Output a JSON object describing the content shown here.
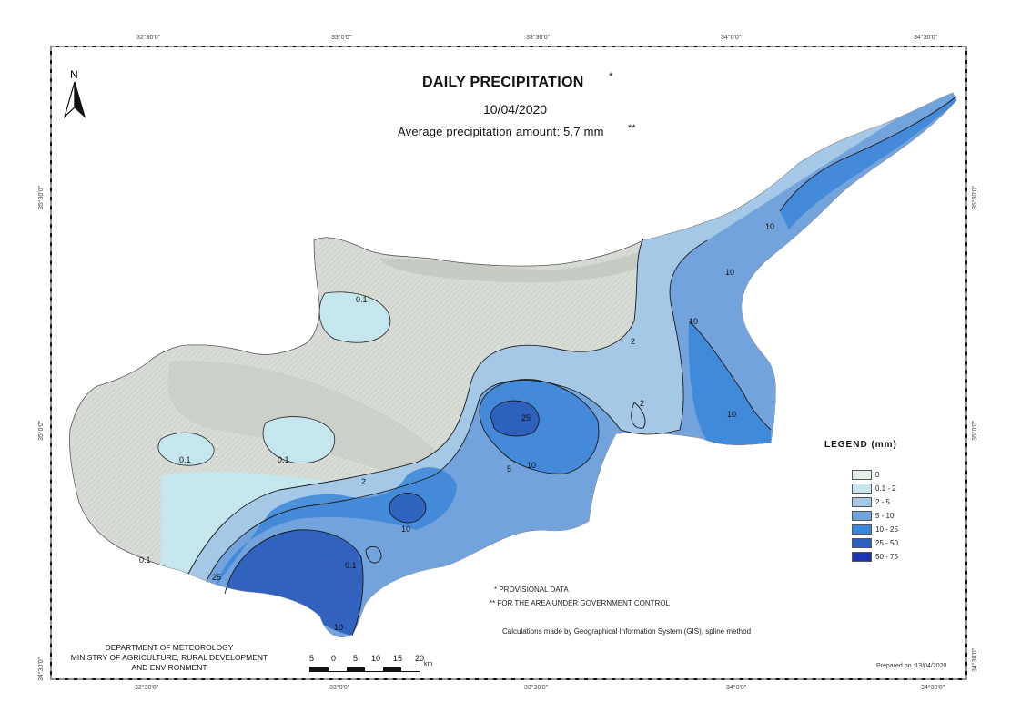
{
  "title": "DAILY PRECIPITATION",
  "title_marker": "*",
  "date": "10/04/2020",
  "average": "Average precipitation amount: 5.7 mm",
  "average_marker": "**",
  "north_label": "N",
  "graticule": {
    "top": [
      "32°30'0\"",
      "33°0'0\"",
      "33°30'0\"",
      "34°0'0\"",
      "34°30'0\""
    ],
    "bottom": [
      "32°30'0\"",
      "33°0'0\"",
      "33°30'0\"",
      "34°0'0\"",
      "34°30'0\""
    ],
    "left": [
      "35°30'0\"",
      "35°0'0\"",
      "34°30'0\""
    ],
    "right": [
      "35°30'0\"",
      "35°0'0\"",
      "34°30'0\""
    ]
  },
  "legend": {
    "title": "LEGEND (mm)",
    "items": [
      {
        "label": "0",
        "color": "#e6efe5"
      },
      {
        "label": "0.1 - 2",
        "color": "#c6e6ee"
      },
      {
        "label": "2 - 5",
        "color": "#a4c8e6"
      },
      {
        "label": "5 - 10",
        "color": "#73a3dc"
      },
      {
        "label": "10 - 25",
        "color": "#3c86d8"
      },
      {
        "label": "25 - 50",
        "color": "#2d5fbc"
      },
      {
        "label": "50 - 75",
        "color": "#1e32b4"
      }
    ]
  },
  "contour_labels": [
    "0.1",
    "2",
    "10",
    "25",
    "5"
  ],
  "notes": {
    "provisional": "* PROVISIONAL DATA",
    "government": "** FOR THE AREA UNDER GOVERNMENT CONTROL",
    "method": "Calculations made by Geographical Information System (GIS), spline method"
  },
  "department": {
    "line1": "DEPARTMENT OF METEOROLOGY",
    "line2": "MINISTRY OF AGRICULTURE, RURAL DEVELOPMENT",
    "line3": "AND ENVIRONMENT"
  },
  "scale": {
    "labels": [
      "5",
      "0",
      "5",
      "10",
      "15",
      "20"
    ],
    "unit": "km"
  },
  "prepared": "Prepared on :13/04/2020"
}
